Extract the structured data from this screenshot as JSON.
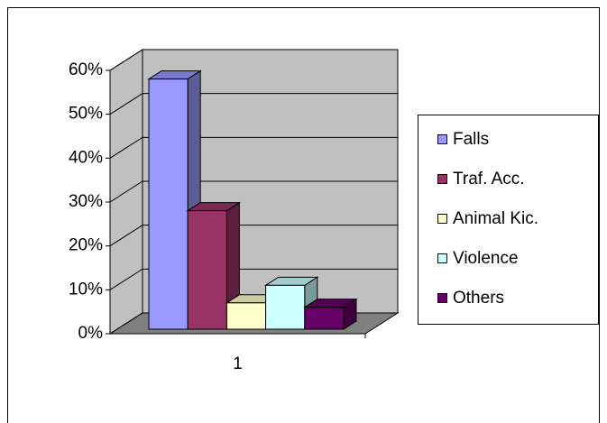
{
  "chart_data": {
    "type": "bar3d",
    "categories": [
      "1"
    ],
    "series": [
      {
        "name": "Falls",
        "color": "#9999ff",
        "values": [
          57
        ]
      },
      {
        "name": "Traf. Acc.",
        "color": "#993366",
        "values": [
          27
        ]
      },
      {
        "name": "Animal Kic.",
        "color": "#ffffcc",
        "values": [
          6
        ]
      },
      {
        "name": "Violence",
        "color": "#ccffff",
        "values": [
          10
        ]
      },
      {
        "name": "Others",
        "color": "#660066",
        "values": [
          5
        ]
      }
    ],
    "ylim": [
      0,
      60
    ],
    "yticks": [
      {
        "value": 0,
        "label": "0%"
      },
      {
        "value": 10,
        "label": "10%"
      },
      {
        "value": 20,
        "label": "20%"
      },
      {
        "value": 30,
        "label": "30%"
      },
      {
        "value": 40,
        "label": "40%"
      },
      {
        "value": 50,
        "label": "50%"
      },
      {
        "value": 60,
        "label": "60%"
      }
    ],
    "grid": true,
    "legend": "right"
  }
}
